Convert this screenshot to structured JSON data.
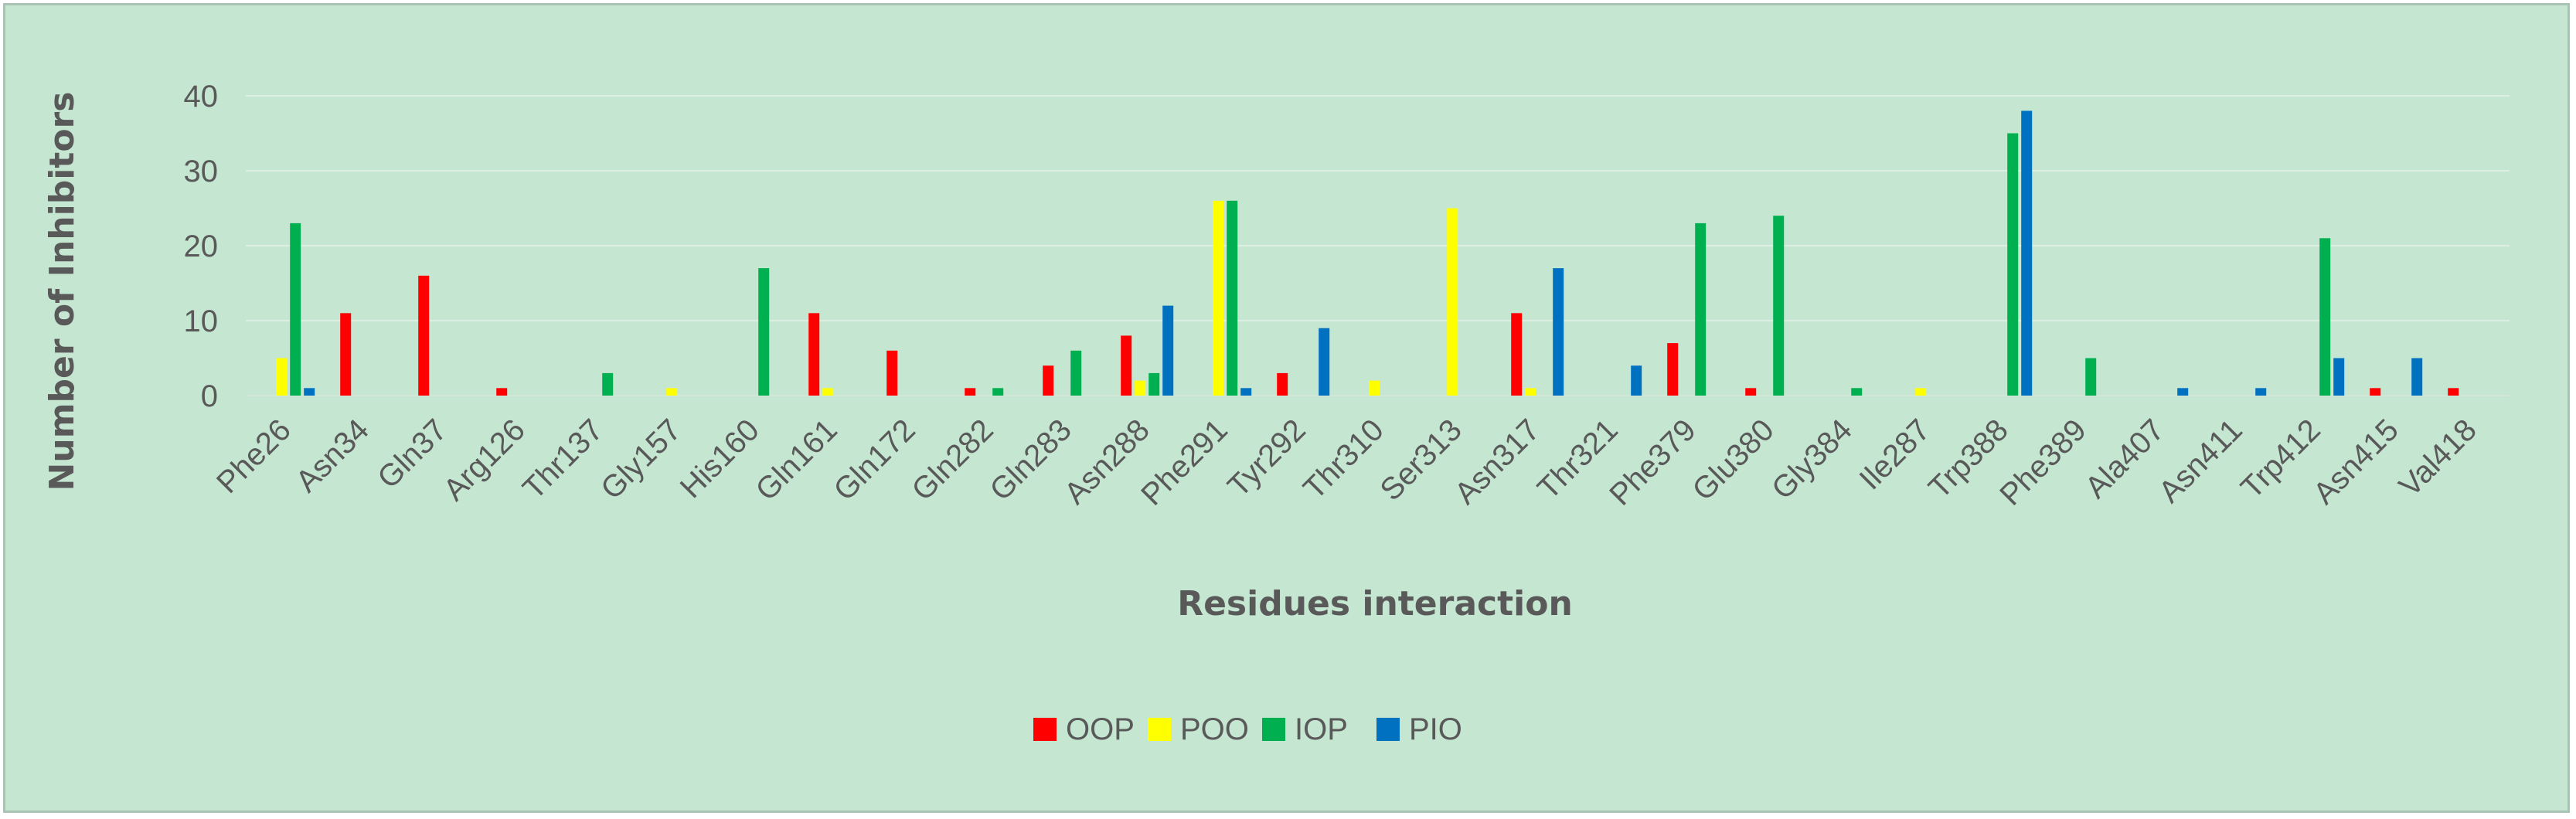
{
  "chart_data": {
    "type": "bar",
    "title": "",
    "xlabel": "Residues interaction",
    "ylabel": "Number of Inhibitors",
    "ylim": [
      0,
      40
    ],
    "yticks": [
      0,
      10,
      20,
      30,
      40
    ],
    "grid": true,
    "legend_position": "bottom-center",
    "categories": [
      "Phe26",
      "Asn34",
      "Gln37",
      "Arg126",
      "Thr137",
      "Gly157",
      "His160",
      "Gln161",
      "Gln172",
      "Gln282",
      "Gln283",
      "Asn288",
      "Phe291",
      "Tyr292",
      "Thr310",
      "Ser313",
      "Asn317",
      "Thr321",
      "Phe379",
      "Glu380",
      "Gly384",
      "Ile287",
      "Trp388",
      "Phe389",
      "Ala407",
      "Asn411",
      "Trp412",
      "Asn415",
      "Val418"
    ],
    "series": [
      {
        "name": "OOP",
        "color": "#ff0000",
        "values": [
          0,
          11,
          16,
          1,
          0,
          0,
          0,
          11,
          6,
          1,
          4,
          8,
          0,
          3,
          0,
          0,
          11,
          0,
          7,
          1,
          0,
          0,
          0,
          0,
          0,
          0,
          0,
          1,
          1
        ]
      },
      {
        "name": "POO",
        "color": "#ffff00",
        "values": [
          5,
          0,
          0,
          0,
          0,
          1,
          0,
          1,
          0,
          0,
          0,
          2,
          26,
          0,
          2,
          25,
          1,
          0,
          0,
          0,
          0,
          1,
          0,
          0,
          0,
          0,
          0,
          0,
          0
        ]
      },
      {
        "name": "IOP",
        "color": "#00b050",
        "values": [
          23,
          0,
          0,
          0,
          3,
          0,
          17,
          0,
          0,
          1,
          6,
          3,
          26,
          0,
          0,
          0,
          0,
          0,
          23,
          24,
          1,
          0,
          35,
          5,
          0,
          0,
          21,
          0,
          0
        ]
      },
      {
        "name": "PIO",
        "color": "#0070c0",
        "values": [
          1,
          0,
          0,
          0,
          0,
          0,
          0,
          0,
          0,
          0,
          0,
          12,
          1,
          9,
          0,
          0,
          17,
          4,
          0,
          0,
          0,
          0,
          38,
          0,
          1,
          1,
          5,
          5,
          0
        ]
      }
    ]
  }
}
